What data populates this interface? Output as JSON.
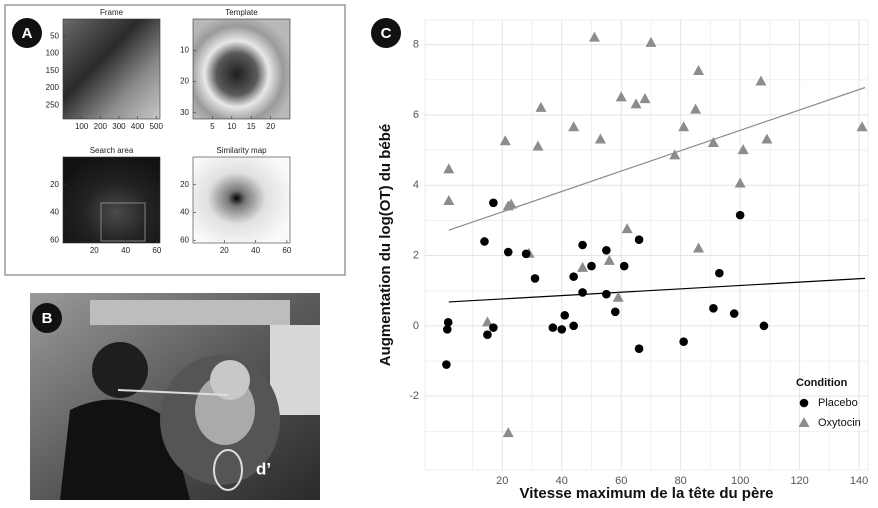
{
  "panel_labels": [
    "A",
    "B",
    "C"
  ],
  "photo_annotation": "d’",
  "chart_data": [
    {
      "type": "image",
      "title": "Frame",
      "xlim": [
        0,
        520
      ],
      "ylim": [
        0,
        290
      ],
      "yreversed": true,
      "xticks": [
        100,
        200,
        300,
        400,
        500
      ],
      "yticks": [
        50,
        100,
        150,
        200,
        250
      ]
    },
    {
      "type": "image",
      "title": "Template",
      "xlim": [
        0,
        25
      ],
      "ylim": [
        0,
        32
      ],
      "yreversed": true,
      "xticks": [
        5,
        10,
        15,
        20
      ],
      "yticks": [
        10,
        20,
        30
      ]
    },
    {
      "type": "image",
      "title": "Search area",
      "xlim": [
        0,
        62
      ],
      "ylim": [
        0,
        62
      ],
      "yreversed": true,
      "xticks": [
        20,
        40,
        60
      ],
      "yticks": [
        20,
        40,
        60
      ]
    },
    {
      "type": "image",
      "title": "Similarity map",
      "xlim": [
        0,
        62
      ],
      "ylim": [
        0,
        62
      ],
      "yreversed": true,
      "xticks": [
        20,
        40,
        60
      ],
      "yticks": [
        20,
        40,
        60
      ]
    },
    {
      "type": "scatter",
      "x_label": "Vitesse maximum de la tête du père",
      "y_label": "Augmentation du log(OT) du bébé",
      "xlim": [
        -6,
        143
      ],
      "ylim": [
        -4.1,
        8.7
      ],
      "xticks": [
        20,
        40,
        60,
        80,
        100,
        120,
        140
      ],
      "yticks": [
        -2,
        0,
        2,
        4,
        6,
        8
      ],
      "grid": true,
      "legend": "lower right",
      "legend_title": "Condition",
      "series": [
        {
          "name": "Placebo",
          "color": "#000000",
          "marker": "circle",
          "x": [
            1.5,
            1.8,
            1.2,
            17,
            14,
            22,
            28,
            31,
            15,
            17,
            37,
            40,
            41,
            44,
            44,
            47,
            47,
            50,
            55,
            55,
            58,
            61,
            66,
            66,
            81,
            93,
            91,
            100,
            98,
            108
          ],
          "values": [
            -0.1,
            0.1,
            -1.1,
            3.5,
            2.4,
            2.1,
            2.05,
            1.35,
            -0.25,
            -0.05,
            -0.05,
            -0.1,
            0.3,
            0,
            1.4,
            2.3,
            0.95,
            1.7,
            2.15,
            0.9,
            0.4,
            1.7,
            2.45,
            -0.65,
            -0.45,
            1.5,
            0.5,
            3.15,
            0.35,
            0
          ]
        },
        {
          "name": "Oxytocin",
          "color": "#8c8c8c",
          "marker": "triangle",
          "x": [
            2,
            2,
            15,
            21,
            22,
            22,
            23,
            29,
            32,
            33,
            44,
            47,
            51,
            53,
            56,
            59,
            60,
            62,
            65,
            68,
            70,
            78,
            81,
            85,
            86,
            86,
            91,
            100,
            101,
            107,
            109,
            141
          ],
          "values": [
            4.45,
            3.55,
            0.1,
            5.25,
            -3.05,
            3.4,
            3.45,
            2.05,
            5.1,
            6.2,
            5.65,
            1.65,
            8.2,
            5.3,
            1.85,
            0.8,
            6.5,
            2.75,
            6.3,
            6.45,
            8.05,
            4.85,
            5.65,
            6.15,
            7.25,
            2.2,
            5.2,
            4.05,
            5.0,
            6.95,
            5.3,
            5.65
          ]
        }
      ],
      "fit_lines": [
        {
          "color": "#000000",
          "x": [
            2,
            142
          ],
          "values": [
            0.68,
            1.35
          ]
        },
        {
          "color": "#8c8c8c",
          "x": [
            2,
            142
          ],
          "values": [
            2.72,
            6.78
          ]
        }
      ]
    }
  ]
}
